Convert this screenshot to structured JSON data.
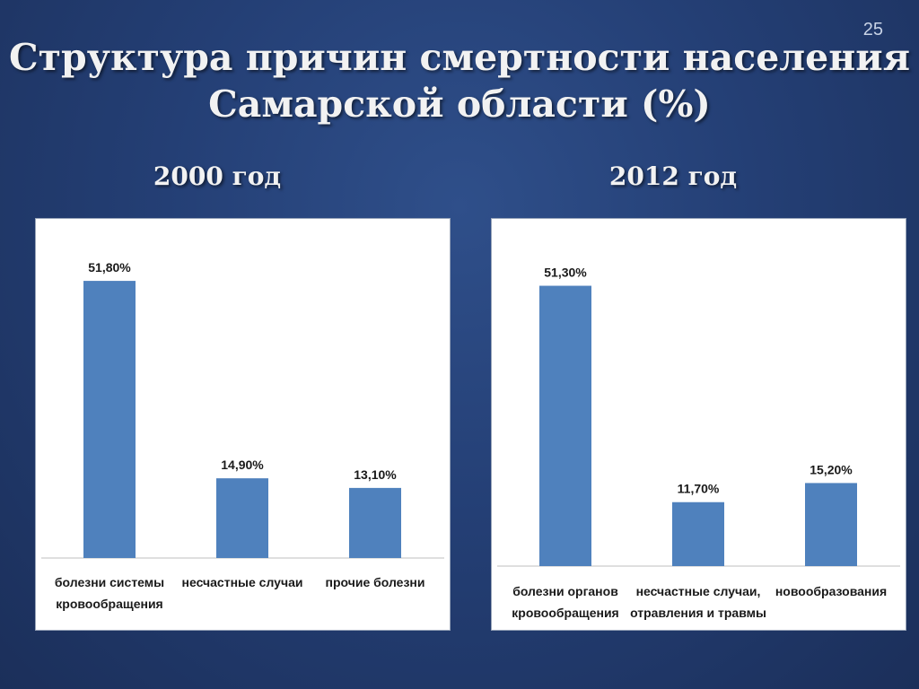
{
  "slide": {
    "number": "25",
    "title_line1": "Структура причин смертности населения",
    "title_line2": "Самарской области (%)"
  },
  "colors": {
    "bar": "#4f81bd"
  },
  "chart_data": [
    {
      "type": "bar",
      "title": "2000 год",
      "categories": [
        [
          "болезни системы",
          "кровообращения"
        ],
        [
          "несчастные случаи"
        ],
        [
          "прочие болезни"
        ]
      ],
      "values": [
        51.8,
        14.9,
        13.1
      ],
      "value_labels": [
        "51,80%",
        "14,90%",
        "13,10%"
      ],
      "ylim": [
        0,
        55
      ],
      "grid": false,
      "legend": "none"
    },
    {
      "type": "bar",
      "title": "2012 год",
      "categories": [
        [
          "болезни органов",
          "кровообращения"
        ],
        [
          "несчастные случаи,",
          "отравления и травмы"
        ],
        [
          "новообразования"
        ]
      ],
      "values": [
        51.3,
        11.7,
        15.2
      ],
      "value_labels": [
        "51,30%",
        "11,70%",
        "15,20%"
      ],
      "ylim": [
        0,
        55
      ],
      "grid": false,
      "legend": "none"
    }
  ]
}
